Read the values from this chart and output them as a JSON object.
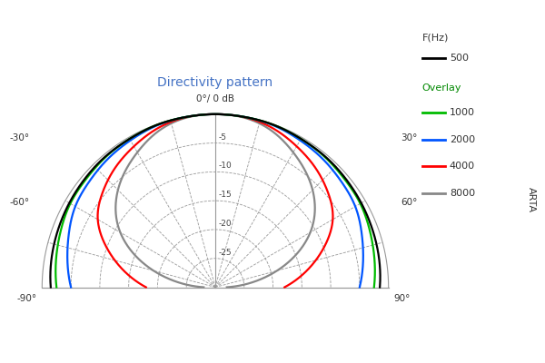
{
  "title": "Directivity pattern",
  "title_color": "#4472C4",
  "background_color": "#ffffff",
  "grid_color": "#999999",
  "db_min": -30,
  "db_max": 0,
  "db_rings": [
    -5,
    -10,
    -15,
    -20,
    -25
  ],
  "angle_lines": [
    -90,
    -75,
    -60,
    -45,
    -30,
    -15,
    0,
    15,
    30,
    45,
    60,
    75,
    90
  ],
  "arta_label": "ARTA",
  "legend_title1": "F(Hz)",
  "legend_title2": "Overlay",
  "series": [
    {
      "label": "500",
      "color": "#000000",
      "angles": [
        -90,
        -80,
        -70,
        -60,
        -50,
        -40,
        -30,
        -20,
        -10,
        0,
        10,
        20,
        30,
        40,
        50,
        60,
        70,
        80,
        90
      ],
      "db": [
        -1.5,
        -1.2,
        -1.0,
        -0.8,
        -0.6,
        -0.4,
        -0.3,
        -0.1,
        -0.05,
        0,
        -0.05,
        -0.1,
        -0.3,
        -0.4,
        -0.6,
        -0.8,
        -1.0,
        -1.2,
        -1.5
      ]
    },
    {
      "label": "1000",
      "color": "#00bb00",
      "angles": [
        -90,
        -80,
        -70,
        -60,
        -50,
        -40,
        -30,
        -20,
        -10,
        0,
        10,
        20,
        30,
        40,
        50,
        60,
        70,
        80,
        90
      ],
      "db": [
        -2.5,
        -2.0,
        -1.5,
        -1.0,
        -0.8,
        -0.5,
        -0.3,
        -0.1,
        -0.05,
        0,
        -0.05,
        -0.1,
        -0.3,
        -0.5,
        -0.8,
        -1.0,
        -1.5,
        -2.0,
        -2.5
      ]
    },
    {
      "label": "2000",
      "color": "#0055ff",
      "angles": [
        -90,
        -80,
        -70,
        -60,
        -50,
        -40,
        -30,
        -20,
        -10,
        0,
        10,
        20,
        30,
        40,
        50,
        60,
        70,
        80,
        90
      ],
      "db": [
        -5.0,
        -4.0,
        -3.0,
        -2.0,
        -1.5,
        -1.0,
        -0.6,
        -0.2,
        -0.05,
        0,
        -0.05,
        -0.2,
        -0.6,
        -1.0,
        -1.5,
        -2.0,
        -3.0,
        -4.0,
        -5.0
      ]
    },
    {
      "label": "4000",
      "color": "#ff0000",
      "angles": [
        -90,
        -80,
        -70,
        -60,
        -50,
        -40,
        -30,
        -20,
        -10,
        0,
        10,
        20,
        30,
        40,
        50,
        60,
        70,
        80,
        90
      ],
      "db": [
        -18.0,
        -14.0,
        -10.0,
        -6.5,
        -4.5,
        -3.0,
        -1.8,
        -0.7,
        -0.1,
        0,
        -0.1,
        -0.7,
        -1.8,
        -3.0,
        -4.5,
        -6.5,
        -10.0,
        -14.0,
        -18.0
      ]
    },
    {
      "label": "8000",
      "color": "#888888",
      "angles": [
        -90,
        -80,
        -70,
        -60,
        -50,
        -40,
        -30,
        -20,
        -10,
        0,
        10,
        20,
        30,
        40,
        50,
        60,
        70,
        80,
        90
      ],
      "db": [
        -28.0,
        -22.0,
        -16.0,
        -11.0,
        -7.5,
        -5.0,
        -3.0,
        -1.2,
        -0.2,
        0,
        -0.2,
        -1.2,
        -3.0,
        -5.0,
        -7.5,
        -11.0,
        -16.0,
        -22.0,
        -28.0
      ]
    }
  ]
}
